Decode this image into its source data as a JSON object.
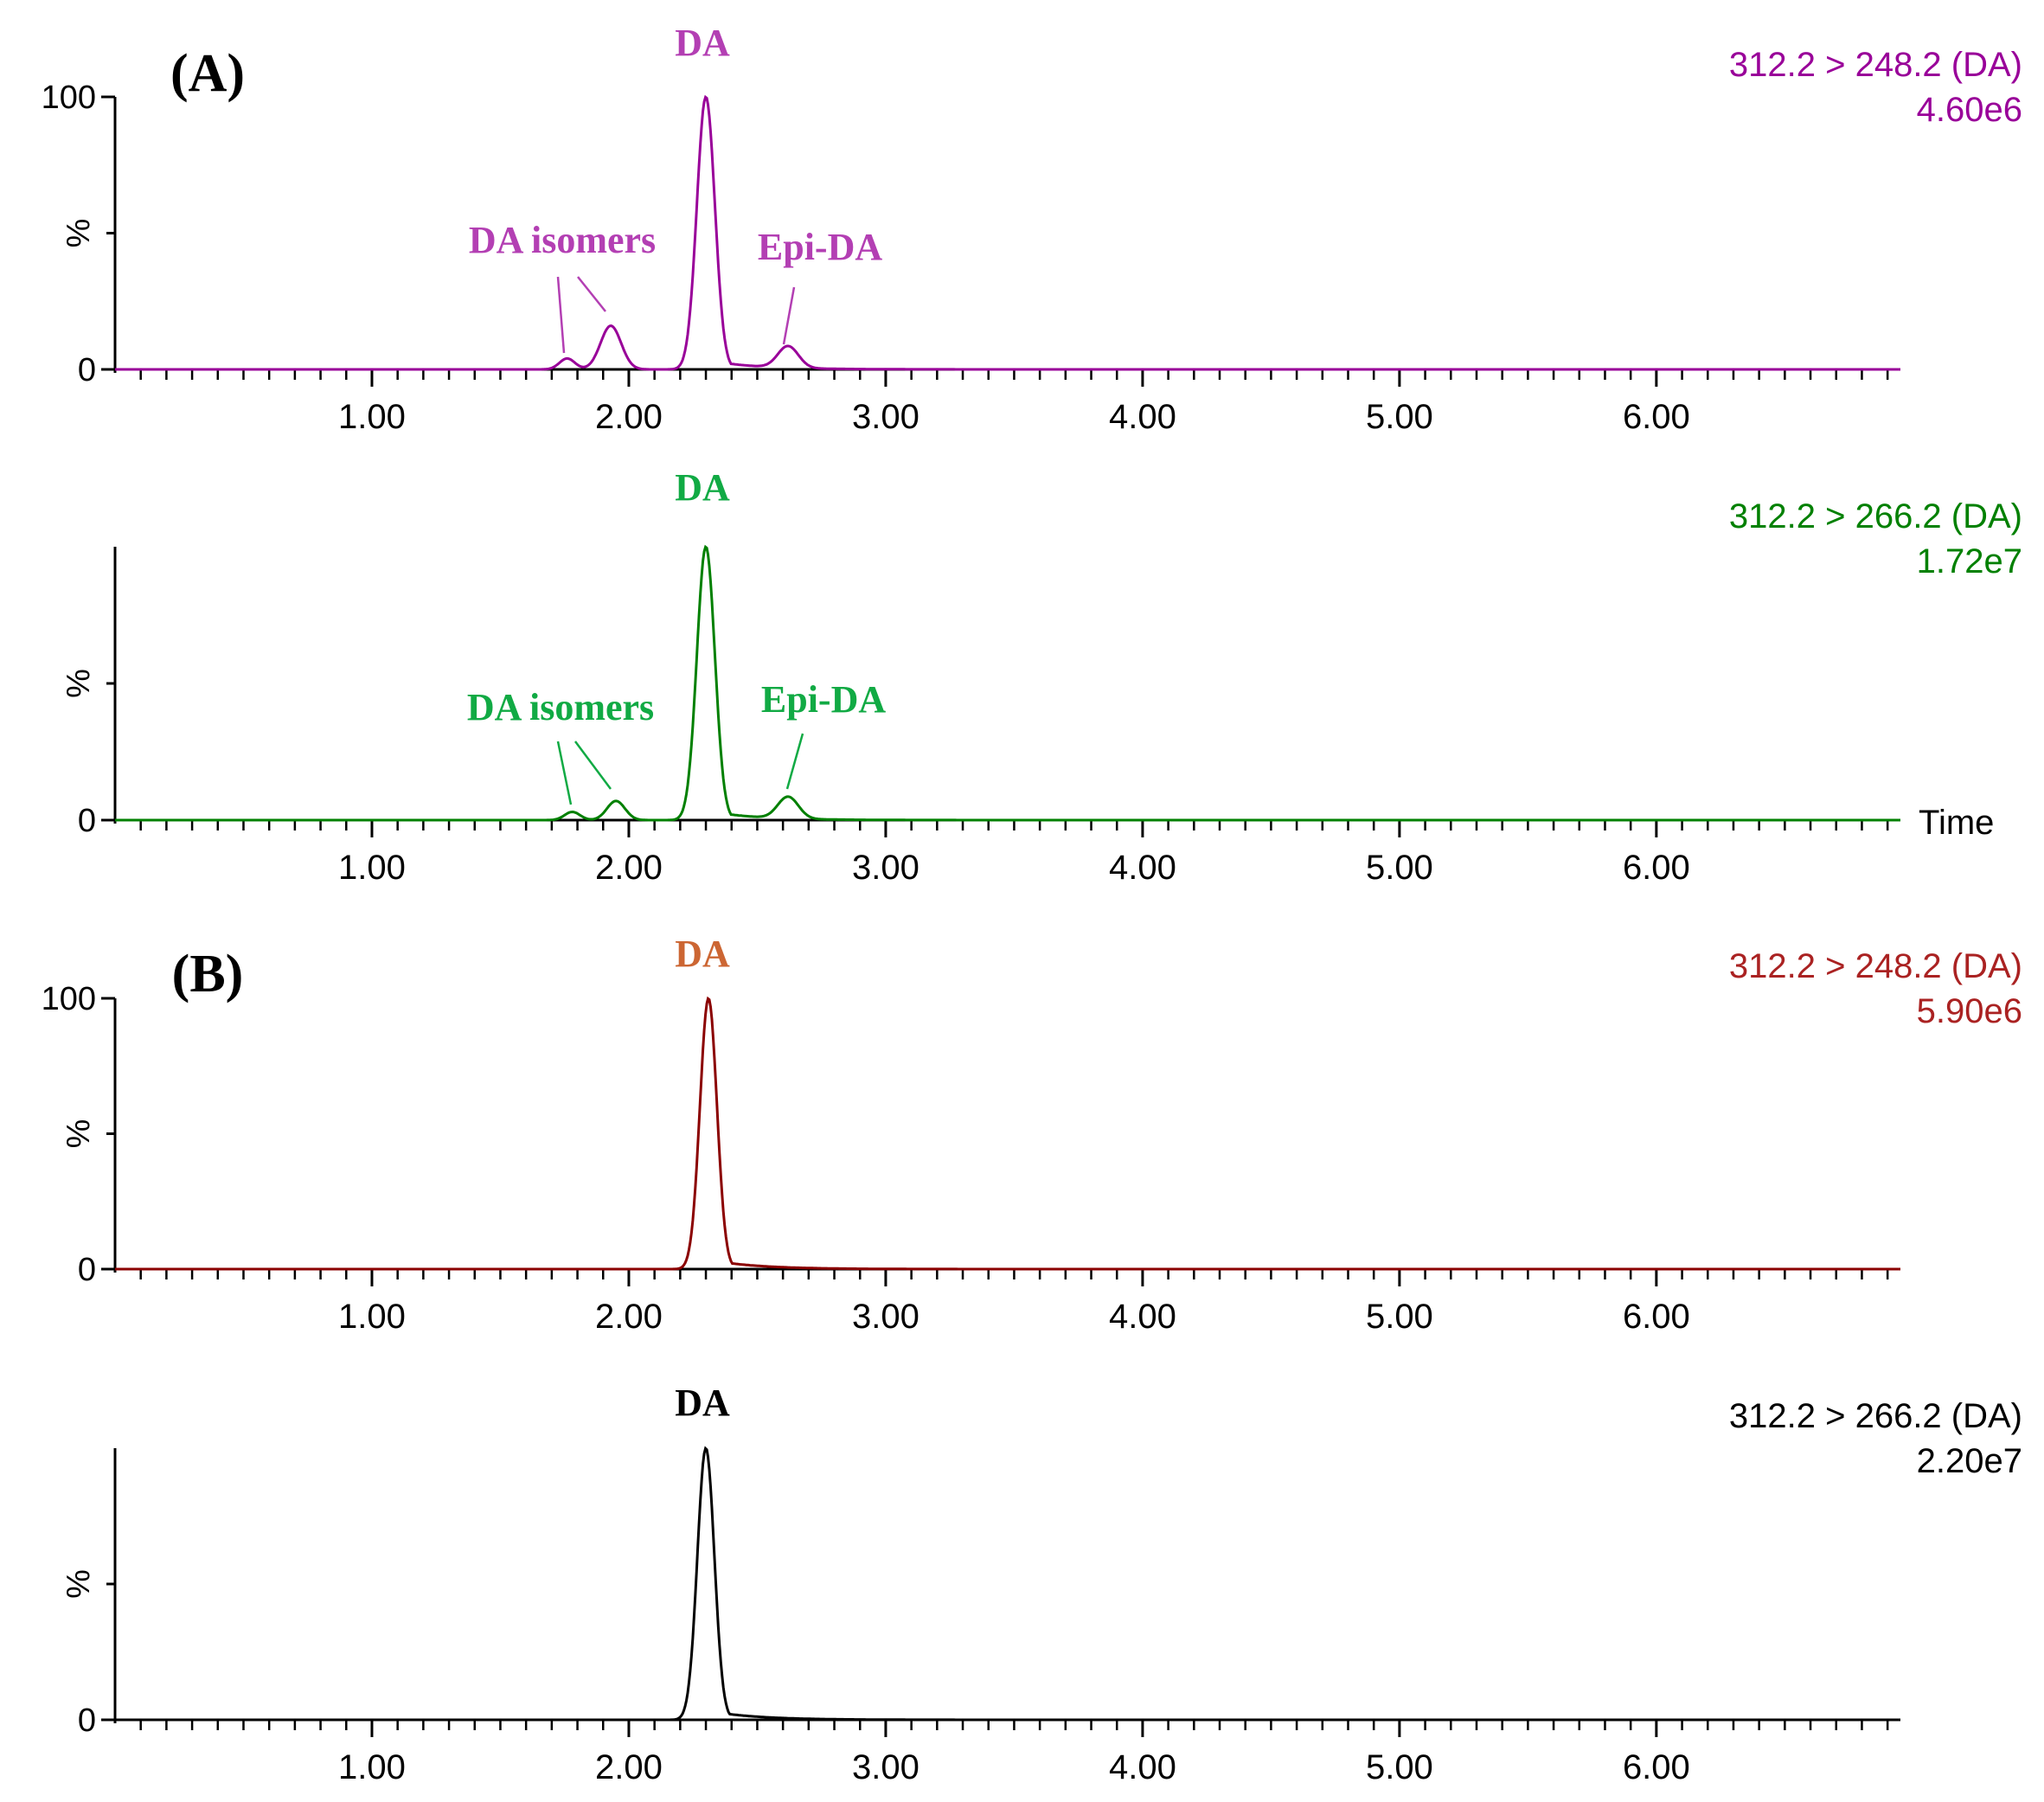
{
  "chart_data": [
    {
      "type": "line",
      "panel": "(A)",
      "trace_label": "312.2 > 248.2 (DA)",
      "intensity": "4.60e6",
      "color": "#990099",
      "label_color": "#b33fb3",
      "xlabel": "",
      "ylabel": "%",
      "xlim": [
        0,
        6.95
      ],
      "ylim": [
        0,
        100
      ],
      "xticks": [
        "1.00",
        "2.00",
        "3.00",
        "4.00",
        "5.00",
        "6.00"
      ],
      "yticks": [
        "100",
        "0"
      ],
      "peaks": [
        {
          "name": "DA isomer",
          "t": 1.76,
          "h": 4,
          "w": 0.03
        },
        {
          "name": "DA isomer",
          "t": 1.93,
          "h": 16,
          "w": 0.04
        },
        {
          "name": "DA",
          "t": 2.3,
          "h": 100,
          "w": 0.035
        },
        {
          "name": "Epi-DA",
          "t": 2.62,
          "h": 8,
          "w": 0.04
        }
      ],
      "annotations": [
        "DA",
        "DA isomers",
        "Epi-DA"
      ]
    },
    {
      "type": "line",
      "panel": "",
      "trace_label": "312.2 > 266.2 (DA)",
      "intensity": "1.72e7",
      "color": "#008000",
      "label_color": "#11aa44",
      "xlabel": "Time",
      "ylabel": "%",
      "xlim": [
        0,
        6.95
      ],
      "ylim": [
        0,
        100
      ],
      "xticks": [
        "1.00",
        "2.00",
        "3.00",
        "4.00",
        "5.00",
        "6.00"
      ],
      "yticks": [
        "0"
      ],
      "peaks": [
        {
          "name": "DA isomer",
          "t": 1.78,
          "h": 3,
          "w": 0.03
        },
        {
          "name": "DA isomer",
          "t": 1.95,
          "h": 7,
          "w": 0.035
        },
        {
          "name": "DA",
          "t": 2.3,
          "h": 100,
          "w": 0.035
        },
        {
          "name": "Epi-DA",
          "t": 2.62,
          "h": 8,
          "w": 0.04
        }
      ],
      "annotations": [
        "DA",
        "DA isomers",
        "Epi-DA"
      ]
    },
    {
      "type": "line",
      "panel": "(B)",
      "trace_label": "312.2 > 248.2 (DA)",
      "intensity": "5.90e6",
      "color": "#8b0000",
      "label_color": "#cc6633",
      "trace_label_color": "#aa2222",
      "xlabel": "",
      "ylabel": "%",
      "xlim": [
        0,
        6.95
      ],
      "ylim": [
        0,
        100
      ],
      "xticks": [
        "1.00",
        "2.00",
        "3.00",
        "4.00",
        "5.00",
        "6.00"
      ],
      "yticks": [
        "100",
        "0"
      ],
      "peaks": [
        {
          "name": "DA",
          "t": 2.31,
          "h": 100,
          "w": 0.033
        }
      ],
      "annotations": [
        "DA"
      ]
    },
    {
      "type": "line",
      "panel": "",
      "trace_label": "312.2 > 266.2 (DA)",
      "intensity": "2.20e7",
      "color": "#000000",
      "label_color": "#000000",
      "xlabel": "",
      "ylabel": "%",
      "xlim": [
        0,
        6.95
      ],
      "ylim": [
        0,
        100
      ],
      "xticks": [
        "1.00",
        "2.00",
        "3.00",
        "4.00",
        "5.00",
        "6.00"
      ],
      "yticks": [
        "0"
      ],
      "peaks": [
        {
          "name": "DA",
          "t": 2.3,
          "h": 100,
          "w": 0.033
        }
      ],
      "annotations": [
        "DA"
      ]
    }
  ]
}
